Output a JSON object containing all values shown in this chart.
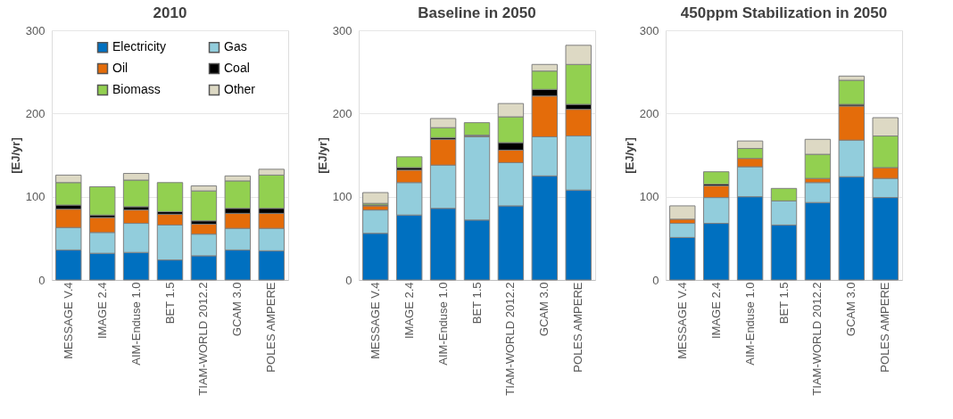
{
  "chart_data": [
    {
      "type": "bar",
      "stacked": true,
      "title": "2010",
      "ylabel": "[EJ/yr]",
      "ylim": [
        0,
        300
      ],
      "yticks": [
        0,
        100,
        200,
        300
      ],
      "grid": "y",
      "legend": "top",
      "categories": [
        "MESSAGE V.4",
        "IMAGE 2.4",
        "AIM-Enduse 1.0",
        "BET 1.5",
        "TIAM-WORLD 2012.2",
        "GCAM 3.0",
        "POLES AMPERE"
      ],
      "series": [
        {
          "name": "Electricity",
          "color": "#0070c0",
          "values": [
            36,
            32,
            33,
            24,
            29,
            36,
            35
          ]
        },
        {
          "name": "Gas",
          "color": "#92cddc",
          "values": [
            27,
            25,
            35,
            42,
            26,
            26,
            27
          ]
        },
        {
          "name": "Oil",
          "color": "#e46c0a",
          "values": [
            22,
            18,
            16,
            13,
            12,
            18,
            18
          ]
        },
        {
          "name": "Coal",
          "color": "#000000",
          "values": [
            5,
            3,
            4,
            3,
            4,
            6,
            6
          ]
        },
        {
          "name": "Biomass",
          "color": "#92d050",
          "values": [
            27,
            34,
            32,
            35,
            36,
            33,
            40
          ]
        },
        {
          "name": "Other",
          "color": "#ddd9c4",
          "values": [
            9,
            null,
            8,
            null,
            6,
            6,
            7
          ]
        }
      ]
    },
    {
      "type": "bar",
      "stacked": true,
      "title": "Baseline in 2050",
      "ylabel": "[EJ/yr]",
      "ylim": [
        0,
        300
      ],
      "yticks": [
        0,
        100,
        200,
        300
      ],
      "grid": "y",
      "categories": [
        "MESSAGE V.4",
        "IMAGE 2.4",
        "AIM-Enduse 1.0",
        "BET 1.5",
        "TIAM-WORLD 2012.2",
        "GCAM 3.0",
        "POLES AMPERE"
      ],
      "series": [
        {
          "color": "#0070c0",
          "values": [
            56,
            78,
            86,
            72,
            89,
            125,
            108
          ]
        },
        {
          "color": "#92cddc",
          "values": [
            28,
            39,
            52,
            100,
            52,
            47,
            65
          ]
        },
        {
          "color": "#e46c0a",
          "values": [
            5,
            15,
            31,
            1,
            15,
            49,
            32
          ]
        },
        {
          "color": "#000000",
          "values": [
            1,
            3,
            2,
            1,
            9,
            8,
            6
          ]
        },
        {
          "color": "#92d050",
          "values": [
            2,
            13,
            12,
            15,
            31,
            22,
            48
          ]
        },
        {
          "color": "#ddd9c4",
          "values": [
            13,
            null,
            11,
            null,
            16,
            8,
            23
          ]
        }
      ]
    },
    {
      "type": "bar",
      "stacked": true,
      "title": "450ppm Stabilization in 2050",
      "ylabel": "[EJ/yr]",
      "ylim": [
        0,
        300
      ],
      "yticks": [
        0,
        100,
        200,
        300
      ],
      "grid": "y",
      "categories": [
        "MESSAGE V.4",
        "IMAGE 2.4",
        "AIM-Enduse 1.0",
        "BET 1.5",
        "TIAM-WORLD 2012.2",
        "GCAM 3.0",
        "POLES AMPERE"
      ],
      "series": [
        {
          "color": "#0070c0",
          "values": [
            51,
            68,
            100,
            66,
            93,
            124,
            99
          ]
        },
        {
          "color": "#92cddc",
          "values": [
            17,
            31,
            36,
            29,
            24,
            44,
            23
          ]
        },
        {
          "color": "#e46c0a",
          "values": [
            5,
            14,
            10,
            null,
            5,
            41,
            13
          ]
        },
        {
          "color": "#000000",
          "values": [
            null,
            2,
            null,
            null,
            null,
            2,
            null
          ]
        },
        {
          "color": "#92d050",
          "values": [
            null,
            15,
            12,
            15,
            29,
            29,
            38
          ]
        },
        {
          "color": "#ddd9c4",
          "values": [
            16,
            null,
            9,
            null,
            18,
            5,
            22
          ]
        }
      ]
    }
  ]
}
